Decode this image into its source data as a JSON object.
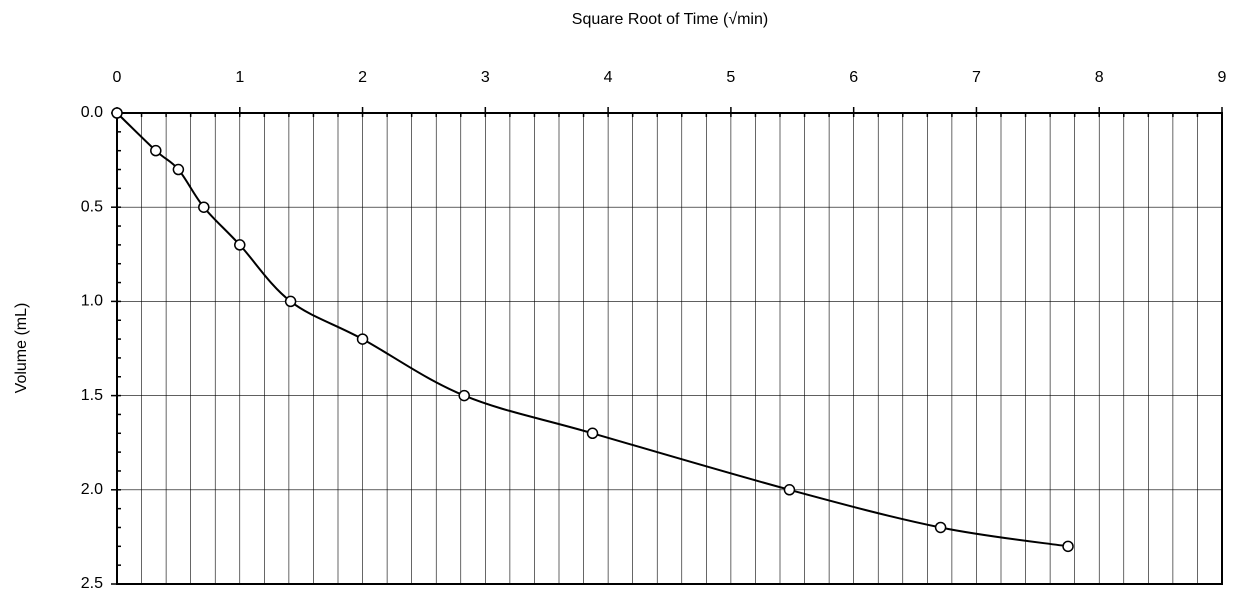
{
  "chart_data": {
    "type": "line",
    "xlabel": "Square Root of Time (√min)",
    "ylabel": "Volume (mL)",
    "x": [
      0,
      0.316,
      0.5,
      0.707,
      1,
      1.414,
      2,
      2.828,
      3.873,
      5.477,
      6.708,
      7.746
    ],
    "series": [
      {
        "color": "#000000",
        "values": [
          0,
          0.2,
          0.3,
          0.5,
          0.7,
          1.0,
          1.2,
          1.5,
          1.7,
          2.0,
          2.2,
          2.3
        ]
      }
    ],
    "xlim": [
      0,
      9
    ],
    "xticks": [
      0,
      1,
      2,
      3,
      4,
      5,
      6,
      7,
      8,
      9
    ],
    "ylim": [
      0,
      2.5
    ],
    "yticks": [
      {
        "value": 0,
        "label": "0.0"
      },
      0.5,
      {
        "value": 1,
        "label": "1.0"
      },
      1.5,
      {
        "value": 2,
        "label": "2.0"
      },
      2.5
    ],
    "y_reversed": true,
    "x_axis_position": "top",
    "x_minor_step": 0.2,
    "y_minor_step": 0.1,
    "grid": true,
    "smooth": true,
    "marker": "open-circle"
  }
}
